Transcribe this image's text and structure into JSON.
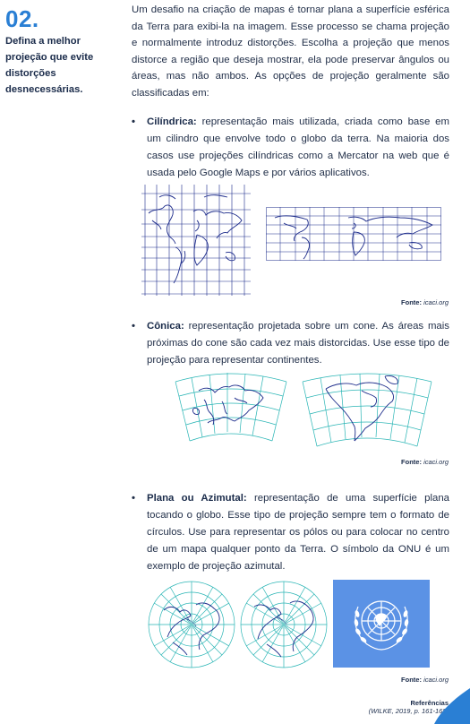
{
  "section": {
    "number": "02.",
    "heading": "Defina a melhor projeção que evite distorções desnecessárias."
  },
  "intro": "Um desafio na criação de mapas é tornar plana a superfície esférica da Terra para exibi-la na imagem. Esse processo se chama projeção e normalmente introduz distorções. Escolha a projeção que menos distorce a região que deseja mostrar, ela pode preservar ângulos ou áreas, mas não ambos. As opções de projeção geralmente são classificadas em:",
  "items": [
    {
      "title": "Cilíndrica:",
      "text": " representação mais utilizada, criada como base em um cilindro que envolve todo o globo da terra. Na maioria dos casos use projeções cilíndricas como a Mercator na web que é usada pelo Google Maps e por vários aplicativos."
    },
    {
      "title": "Cônica:",
      "text": " representação projetada sobre um cone. As áreas mais próximas do cone são cada vez mais distorcidas. Use esse tipo de projeção para representar continentes."
    },
    {
      "title": "Plana ou Azimutal:",
      "text": " representação de uma superfície plana tocando o globo. Esse tipo de projeção sempre tem o formato de círculos. Use para representar os pólos ou para colocar no centro de um mapa qualquer ponto da Terra. O símbolo da ONU é um exemplo de projeção azimutal."
    }
  ],
  "source_label": "Fonte:",
  "source_value": "icaci.org",
  "references": {
    "title": "Referências",
    "citation": "(WILKE, 2019, p. 161-168)"
  },
  "colors": {
    "accent": "#2a7fd4",
    "text": "#1a2b4a",
    "grid_cyan": "#2ab5b5",
    "coast": "#1b2a8a",
    "un_blue": "#5b92e5"
  }
}
